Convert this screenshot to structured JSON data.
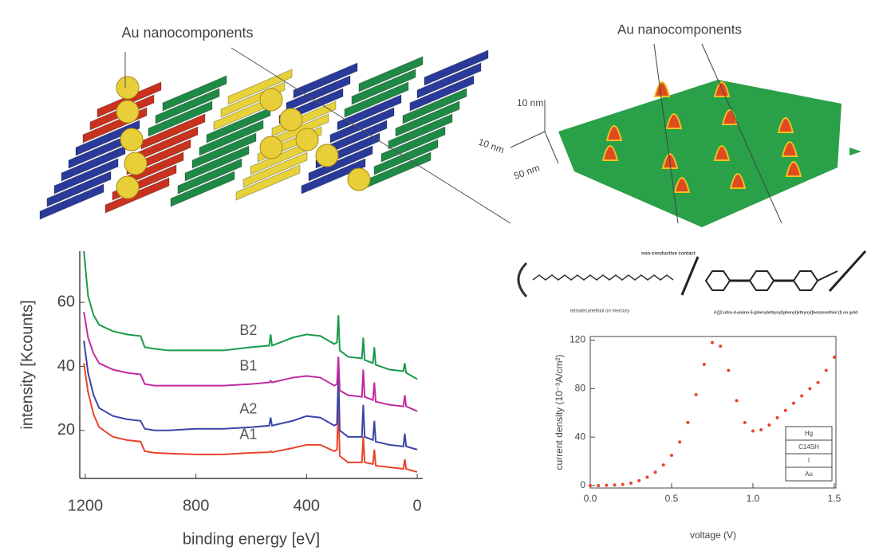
{
  "illustrations": {
    "left": {
      "label": "Au nanocomponents"
    },
    "right": {
      "label": "Au nanocomponents",
      "axis_labels": [
        "10 nm",
        "10 nm",
        "50 nm"
      ]
    }
  },
  "molecule": {
    "contact": "non-conductive contact",
    "left_label": "tetradecanethiol on mercury",
    "right_label": "4-[[2-nitro-4-amino-5-(phenylethynyl)phenyl]ethynyl]benzenethiol (I) on gold"
  },
  "chart_data": [
    {
      "type": "line",
      "xlabel": "binding energy [eV]",
      "ylabel": "intensity [Kcounts]",
      "x": [
        1205,
        1190,
        1170,
        1150,
        1100,
        1050,
        1000,
        985,
        950,
        900,
        800,
        700,
        600,
        535,
        530,
        525,
        450,
        400,
        350,
        300,
        290,
        285,
        280,
        250,
        200,
        195,
        190,
        160,
        155,
        150,
        100,
        50,
        45,
        40,
        0
      ],
      "xlim": [
        1220,
        -20
      ],
      "xticks": [
        1200,
        800,
        400,
        0
      ],
      "ylim": [
        5,
        76
      ],
      "yticks": [
        20,
        40,
        60
      ],
      "series": [
        {
          "name": "A1",
          "color": "#e8442a",
          "values": [
            41,
            32,
            25,
            21,
            18,
            17,
            16.5,
            13.5,
            13,
            12.8,
            12.5,
            12.5,
            13,
            13.2,
            13.5,
            13.2,
            14.5,
            15.5,
            15.5,
            13.5,
            14,
            28,
            12,
            10,
            10,
            18,
            10,
            9.5,
            14,
            9,
            8.5,
            8,
            11,
            8,
            7
          ]
        },
        {
          "name": "A2",
          "color": "#3a45a8",
          "values": [
            48,
            38,
            31,
            27,
            24.5,
            23.5,
            23,
            20.5,
            20,
            20,
            20.5,
            20.5,
            21,
            21.5,
            24,
            21.5,
            23,
            24.5,
            24,
            21.5,
            22,
            38,
            20,
            18,
            18,
            28,
            18,
            17,
            23,
            16.5,
            15.5,
            15,
            19,
            15,
            14
          ]
        },
        {
          "name": "B1",
          "color": "#c02aa0",
          "values": [
            57,
            49,
            44,
            41,
            39,
            38,
            37.5,
            34.5,
            34,
            34,
            34,
            34,
            34.5,
            35,
            35.5,
            35,
            36.5,
            37,
            36.5,
            34,
            34.5,
            43,
            32.5,
            31,
            30.5,
            39,
            30.5,
            29.5,
            35,
            29,
            28,
            27.5,
            31,
            27.5,
            26
          ]
        },
        {
          "name": "B2",
          "color": "#1a9a4a",
          "values": [
            76,
            62,
            56,
            53,
            51,
            50,
            49.5,
            46,
            45.5,
            45,
            45,
            45,
            46,
            46.5,
            50,
            46.5,
            49,
            50,
            49.5,
            47,
            47.5,
            56,
            45,
            43,
            42.5,
            49,
            42,
            41,
            46,
            40.5,
            39,
            38.5,
            41,
            38,
            36
          ]
        }
      ]
    },
    {
      "type": "scatter",
      "xlabel": "voltage (V)",
      "ylabel": "current density (10⁻³A/cm²)",
      "color": "#e8442a",
      "x": [
        0,
        0.05,
        0.1,
        0.15,
        0.2,
        0.25,
        0.3,
        0.35,
        0.4,
        0.45,
        0.5,
        0.55,
        0.6,
        0.65,
        0.7,
        0.75,
        0.8,
        0.85,
        0.9,
        0.95,
        1.0,
        1.05,
        1.1,
        1.15,
        1.2,
        1.25,
        1.3,
        1.35,
        1.4,
        1.45,
        1.5
      ],
      "values": [
        0,
        0,
        0.2,
        0.5,
        1,
        2,
        4,
        7,
        11,
        17,
        25,
        36,
        52,
        75,
        100,
        118,
        115,
        95,
        70,
        52,
        45,
        46,
        50,
        56,
        62,
        68,
        74,
        80,
        85,
        95,
        106
      ],
      "xlim": [
        0,
        1.51
      ],
      "xticks": [
        {
          "value": 0,
          "label": "0.0"
        },
        0.5,
        {
          "value": 1,
          "label": "1.0"
        },
        1.5
      ],
      "ylim": [
        -2,
        123
      ],
      "yticks": [
        0,
        40,
        80,
        120
      ],
      "inset_layers": [
        "Hg",
        "C14SH",
        "I",
        "Au"
      ]
    }
  ]
}
